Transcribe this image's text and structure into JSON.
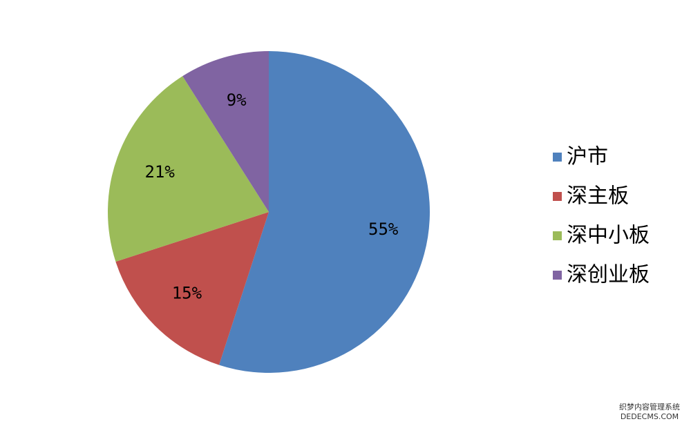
{
  "chart_data": {
    "type": "pie",
    "categories": [
      "沪市",
      "深主板",
      "深中小板",
      "深创业板"
    ],
    "values": [
      55,
      15,
      21,
      9
    ],
    "value_labels": [
      "55%",
      "15%",
      "21%",
      "9%"
    ],
    "colors": [
      "#4f81bd",
      "#c0504d",
      "#9bbb59",
      "#8064a2"
    ],
    "legend": "right"
  },
  "watermark": {
    "line1": "织梦内容管理系统",
    "line2": "DEDECMS.COM"
  }
}
